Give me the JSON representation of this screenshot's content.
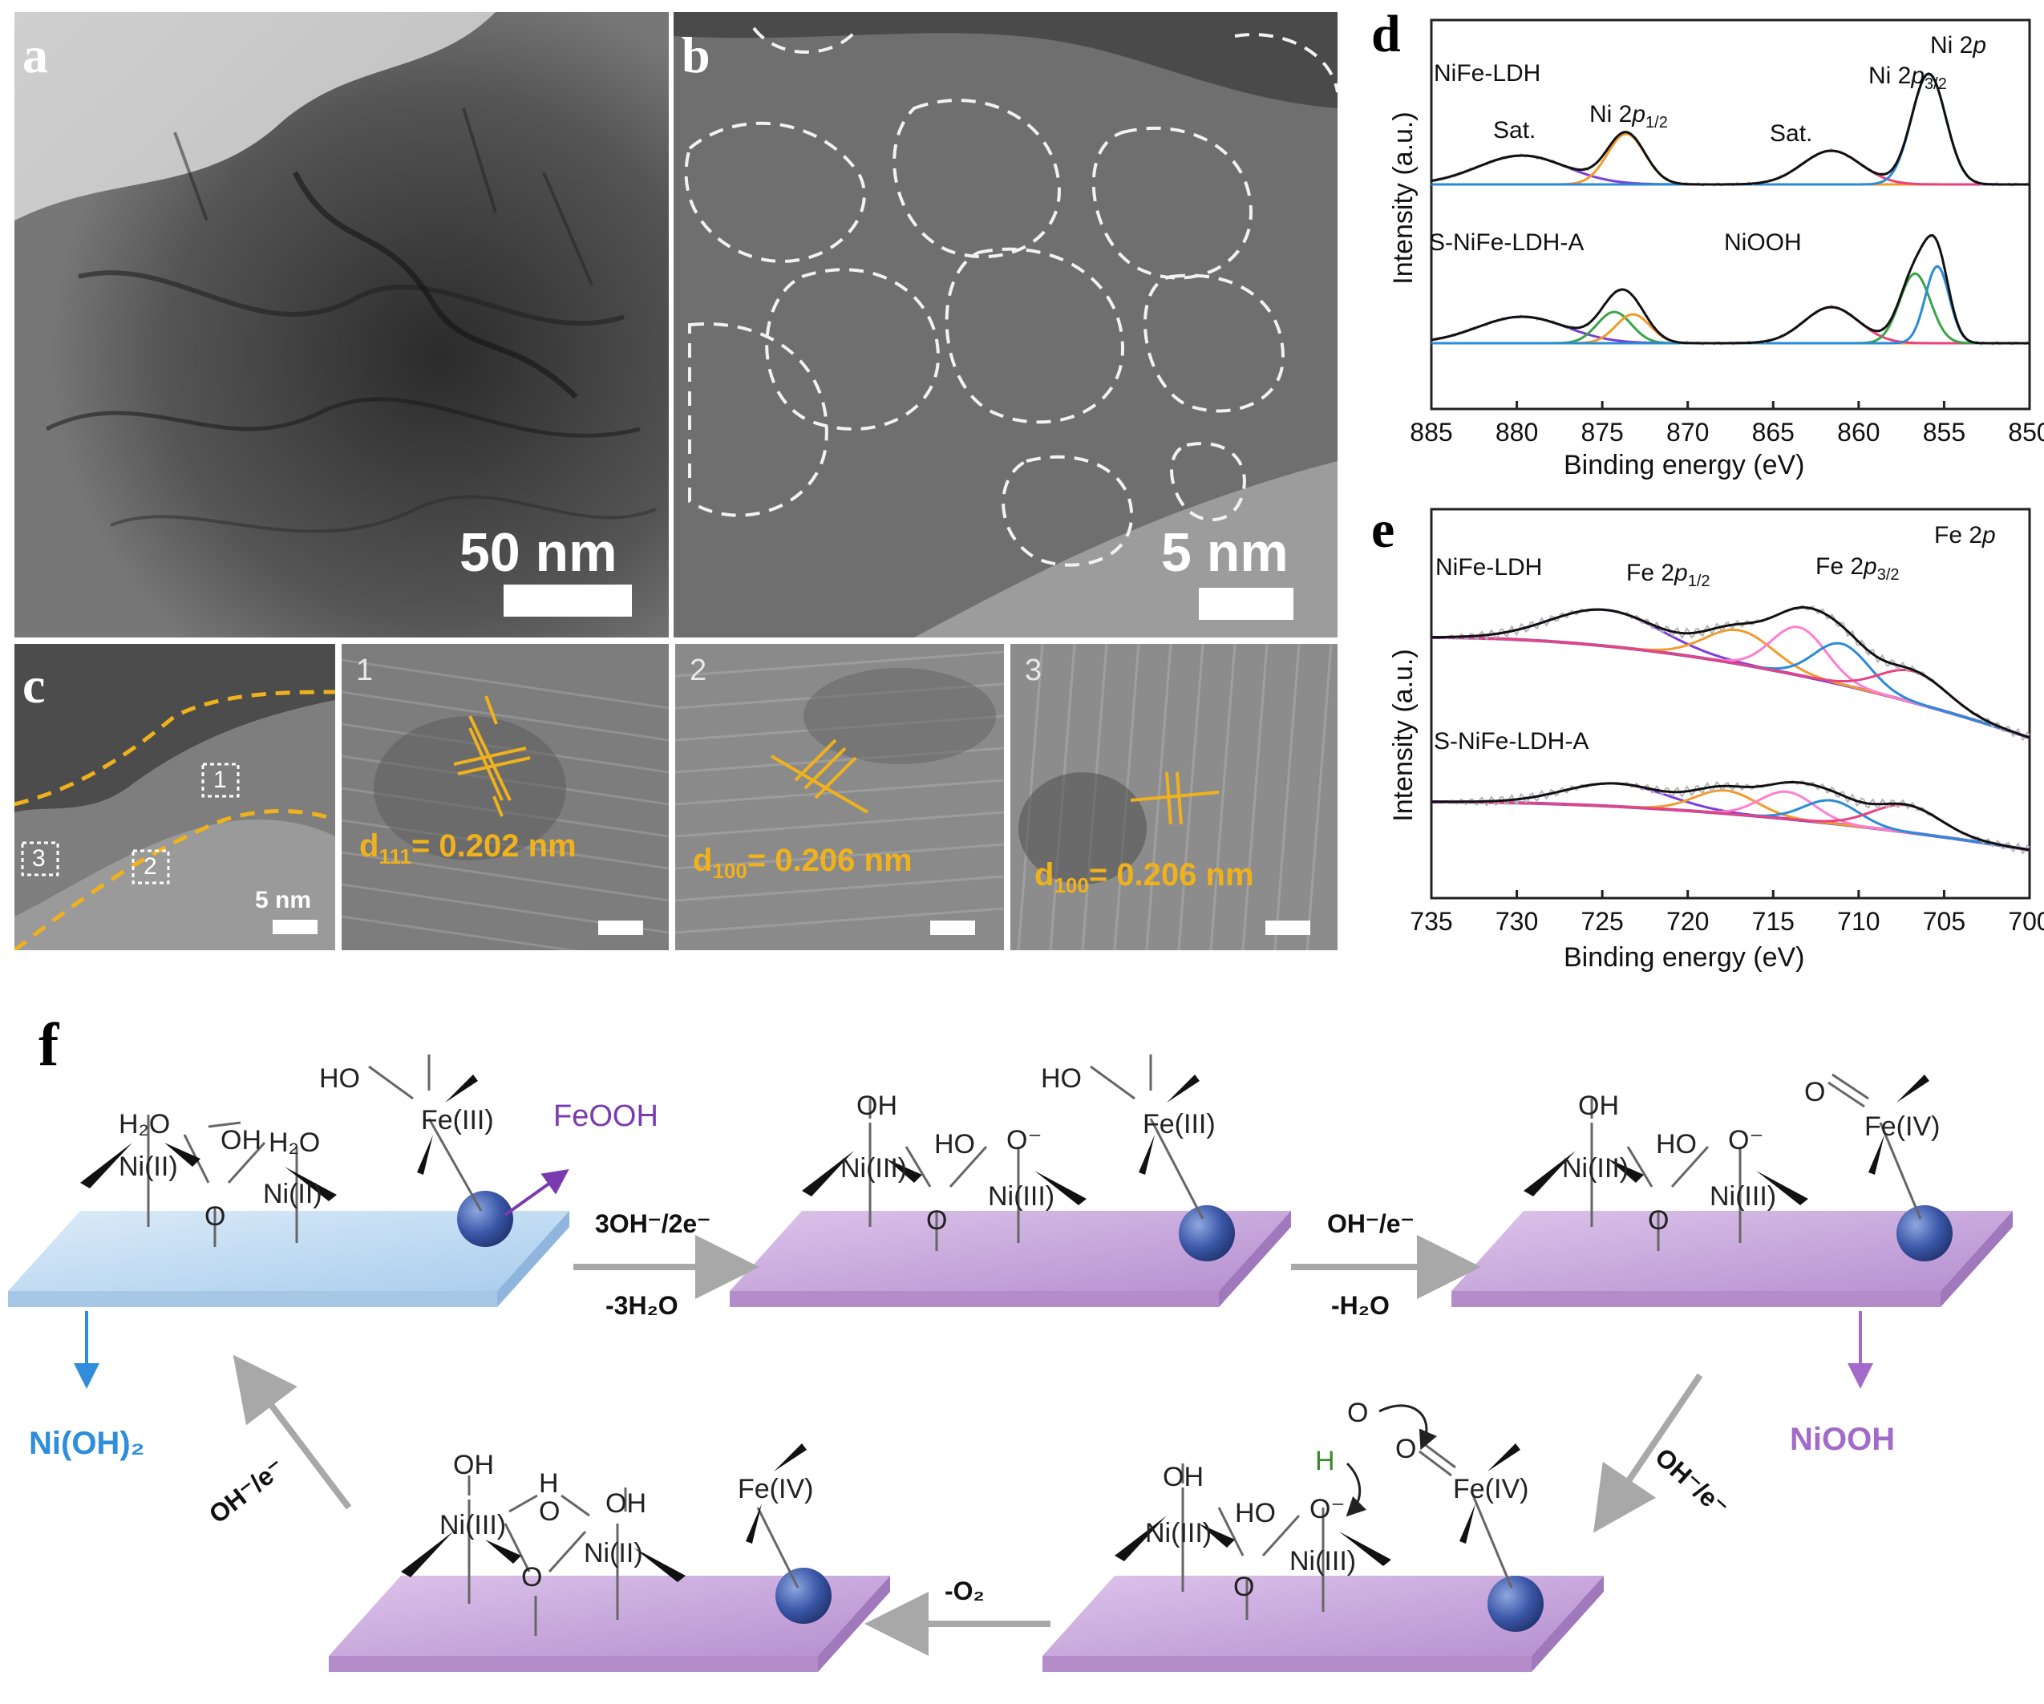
{
  "panels": {
    "a": {
      "label": "a",
      "scale": "50 nm"
    },
    "b": {
      "label": "b",
      "scale": "5 nm"
    },
    "c": {
      "label": "c",
      "scale": "5 nm",
      "boxes": [
        "1",
        "2",
        "3"
      ],
      "insets": [
        {
          "num": "1",
          "d_main": "d",
          "d_sub": "111",
          "d_val": "= 0.202 nm"
        },
        {
          "num": "2",
          "d_main": "d",
          "d_sub": "100",
          "d_val": "= 0.206 nm"
        },
        {
          "num": "3",
          "d_main": "d",
          "d_sub": "100",
          "d_val": "= 0.206 nm"
        }
      ]
    },
    "d": {
      "label": "d"
    },
    "e": {
      "label": "e"
    },
    "f": {
      "label": "f"
    }
  },
  "chart_data": [
    {
      "type": "line",
      "panel": "d",
      "corner_label": {
        "main": "Ni 2",
        "italic": "p"
      },
      "xlabel": "Binding energy (eV)",
      "ylabel": "Intensity (a.u.)",
      "xlim": [
        885,
        850
      ],
      "xticks": [
        885,
        880,
        875,
        870,
        865,
        860,
        855,
        850
      ],
      "series": [
        {
          "name": "NiFe-LDH"
        },
        {
          "name": "S-NiFe-LDH-A"
        }
      ],
      "annotations": {
        "sat1": "Sat.",
        "sat2": "Sat.",
        "p12_main": "Ni 2",
        "p12_italic": "p",
        "p12_sub": "1/2",
        "p32_main": "Ni 2",
        "p32_italic": "p",
        "p32_sub": "3/2",
        "niooh": "NiOOH"
      },
      "peaks_top": [
        {
          "center": 879.7,
          "height": 0.24,
          "width": 2.6,
          "color": "#7b3fd6"
        },
        {
          "center": 873.6,
          "height": 0.42,
          "width": 1.1,
          "color": "#f39a2c"
        },
        {
          "center": 861.6,
          "height": 0.28,
          "width": 1.7,
          "color": "#e8427f"
        },
        {
          "center": 855.9,
          "height": 0.92,
          "width": 1.0,
          "color": "#2a8bd8"
        }
      ],
      "peaks_bottom": [
        {
          "center": 879.7,
          "height": 0.22,
          "width": 2.6,
          "color": "#7b3fd6"
        },
        {
          "center": 874.3,
          "height": 0.26,
          "width": 1.0,
          "color": "#3aa34a"
        },
        {
          "center": 873.2,
          "height": 0.24,
          "width": 1.0,
          "color": "#f39a2c"
        },
        {
          "center": 861.6,
          "height": 0.3,
          "width": 1.6,
          "color": "#e8427f"
        },
        {
          "center": 856.7,
          "height": 0.58,
          "width": 0.9,
          "color": "#3aa34a"
        },
        {
          "center": 855.4,
          "height": 0.64,
          "width": 0.7,
          "color": "#2a8bd8"
        }
      ]
    },
    {
      "type": "line",
      "panel": "e",
      "corner_label": {
        "main": "Fe 2",
        "italic": "p"
      },
      "xlabel": "Binding energy (eV)",
      "ylabel": "Intensity (a.u.)",
      "xlim": [
        735,
        700
      ],
      "xticks": [
        735,
        730,
        725,
        720,
        715,
        710,
        705,
        700
      ],
      "series": [
        {
          "name": "NiFe-LDH"
        },
        {
          "name": "S-NiFe-LDH-A"
        }
      ],
      "annotations": {
        "p12_main": "Fe 2",
        "p12_italic": "p",
        "p12_sub": "1/2",
        "p32_main": "Fe 2",
        "p32_italic": "p",
        "p32_sub": "3/2"
      },
      "peaks_top": [
        {
          "center": 724.8,
          "height": 0.3,
          "width": 3.2,
          "color": "#7b3fd6"
        },
        {
          "center": 717.0,
          "height": 0.28,
          "width": 2.0,
          "color": "#f39a2c"
        },
        {
          "center": 713.5,
          "height": 0.4,
          "width": 1.6,
          "color": "#ff7ed0"
        },
        {
          "center": 711.0,
          "height": 0.34,
          "width": 1.6,
          "color": "#2a8bd8"
        },
        {
          "center": 706.8,
          "height": 0.26,
          "width": 2.0,
          "color": "#e8427f"
        }
      ],
      "peaks_bottom": [
        {
          "center": 724.2,
          "height": 0.22,
          "width": 3.0,
          "color": "#7b3fd6"
        },
        {
          "center": 717.8,
          "height": 0.22,
          "width": 1.8,
          "color": "#f39a2c"
        },
        {
          "center": 714.2,
          "height": 0.26,
          "width": 1.6,
          "color": "#ff7ed0"
        },
        {
          "center": 711.6,
          "height": 0.22,
          "width": 1.6,
          "color": "#2a8bd8"
        },
        {
          "center": 707.2,
          "height": 0.26,
          "width": 2.0,
          "color": "#e8427f"
        }
      ]
    }
  ],
  "scheme": {
    "s1": {
      "h2o_a": "H₂O",
      "oh": "OH",
      "h2o_b": "H₂O",
      "ni1": "Ni(II)",
      "ni2": "Ni(II)",
      "o": "O",
      "ho": "HO",
      "fe": "Fe(III)"
    },
    "s2": {
      "oh": "OH",
      "ho_ni": "HO",
      "ominus": "O⁻",
      "ni1": "Ni(III)",
      "ni2": "Ni(III)",
      "o": "O",
      "ho": "HO",
      "fe": "Fe(III)"
    },
    "s3": {
      "oh": "OH",
      "ho_ni": "HO",
      "ominus": "O⁻",
      "ni1": "Ni(III)",
      "ni2": "Ni(III)",
      "o": "O",
      "ofe": "O",
      "fe": "Fe(IV)"
    },
    "s4": {
      "oh": "OH",
      "ho_ni": "HO",
      "ominus": "O⁻",
      "ni1": "Ni(III)",
      "ni2": "Ni(III)",
      "o": "O",
      "o_top": "O",
      "h": "H",
      "ofe": "O",
      "fe": "Fe(IV)"
    },
    "s5": {
      "oh1": "OH",
      "h": "H",
      "obridge": "O",
      "oh2": "OH",
      "ni1": "Ni(III)",
      "ni2": "Ni(II)",
      "o": "O",
      "fe": "Fe(IV)"
    },
    "labels": {
      "feooh": "FeOOH",
      "nioh2": "Ni(OH)₂",
      "niooh": "NiOOH"
    },
    "arrows": {
      "a1_top": "3OH⁻/2e⁻",
      "a1_bot": "-3H₂O",
      "a2_top": "OH⁻/e⁻",
      "a2_bot": "-H₂O",
      "a3": "OH⁻/e⁻",
      "a4": "-O₂",
      "a5": "OH⁻/e⁻"
    }
  },
  "colors": {
    "accent_orange": "#f0b21c",
    "feooh": "#7a3bb0",
    "nioh2": "#2f8ddb",
    "niooh": "#a36bc9",
    "plate_blue": "#c5def2",
    "plate_purple": "#c8a6dc",
    "sphere": "#3b57a8"
  }
}
